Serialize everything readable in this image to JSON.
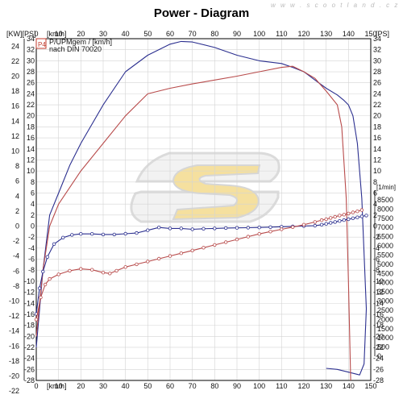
{
  "header": {
    "title": "Power - Diagram",
    "watermark": "w w w . s c o o t l a n d . c z"
  },
  "legend": {
    "badge": "P4",
    "line1": "P/UPMgem / [km/h]",
    "line2": "nach DIN 70020"
  },
  "colors": {
    "background": "#ffffff",
    "grid": "#d4d4d4",
    "axis": "#000000",
    "blue_series": "#2b2f8f",
    "red_series": "#b84b4b",
    "badge": "#c0392b",
    "logo_fill": "#f2d680",
    "logo_outline": "#cfcfcf"
  },
  "chart_data": {
    "type": "line",
    "title": "Power - Diagram",
    "x_axis": {
      "label": "[km/h]",
      "range": [
        0,
        150
      ],
      "ticks": [
        0,
        10,
        20,
        30,
        40,
        50,
        60,
        70,
        80,
        90,
        100,
        110,
        120,
        130,
        140,
        150
      ]
    },
    "y_axis_left": {
      "label": "[KW]",
      "range": [
        -28,
        34
      ],
      "ticks": [
        24,
        22,
        20,
        18,
        16,
        14,
        12,
        10,
        8,
        6,
        4,
        2,
        0,
        -2,
        -4,
        -6,
        -8,
        -10,
        -12,
        -14,
        -16,
        -18,
        -20,
        -22,
        -24
      ],
      "label2": "[PS]",
      "ticks2": [
        34,
        32,
        30,
        28,
        26,
        24,
        22,
        20,
        18,
        16,
        14,
        12,
        10,
        8,
        6,
        4,
        2,
        0,
        -2,
        -4,
        -6,
        -8,
        -10,
        -12,
        -14,
        -16,
        -18,
        -20,
        -22,
        -24,
        -26,
        -28
      ]
    },
    "y_axis_right": {
      "label": "[PS]",
      "ticks": [
        34,
        32,
        30,
        28,
        26,
        24,
        22,
        20,
        18,
        16,
        14,
        12,
        10,
        8,
        6,
        4,
        2,
        0,
        -2,
        -4,
        -6,
        -8,
        -10,
        -12,
        -14,
        -16,
        -18,
        -20,
        -22,
        -24,
        -26,
        -28
      ],
      "rpm_label": "[1/min]",
      "rpm_ticks": [
        8500,
        8000,
        7500,
        7000,
        6500,
        6000,
        5500,
        5000,
        4500,
        4000,
        3500,
        3000,
        2500,
        2000,
        1500,
        1000,
        500,
        0
      ],
      "rpm_range": [
        0,
        8500
      ]
    },
    "grid": true,
    "series": [
      {
        "color": "#2b2f8f",
        "axis": "ps",
        "marker": false,
        "x": [
          0,
          3,
          6,
          10,
          15,
          20,
          30,
          40,
          50,
          60,
          65,
          70,
          80,
          90,
          100,
          110,
          115,
          120,
          125,
          130,
          135,
          138,
          140,
          142,
          144,
          146,
          148,
          147,
          145,
          140,
          135,
          130
        ],
        "y": [
          -22,
          -8,
          2,
          6,
          11,
          15,
          22,
          28,
          31,
          33,
          33.5,
          33.4,
          32.4,
          31,
          30,
          29.5,
          28.8,
          28,
          26.5,
          25,
          23.8,
          22.8,
          22,
          20,
          15,
          5,
          -15,
          -25,
          -27,
          -26.5,
          -26,
          -25.8
        ]
      },
      {
        "color": "#b84b4b",
        "axis": "ps",
        "marker": false,
        "x": [
          0,
          3,
          6,
          10,
          20,
          30,
          40,
          50,
          60,
          70,
          80,
          90,
          100,
          110,
          115,
          120,
          125,
          130,
          135,
          137,
          139,
          140,
          141
        ],
        "y": [
          -20,
          -8,
          0,
          4,
          10,
          15,
          20,
          24,
          25,
          25.8,
          26.5,
          27.2,
          28,
          28.8,
          29,
          28,
          26.8,
          24.5,
          22,
          18,
          5,
          -10,
          -28
        ]
      },
      {
        "color": "#2b2f8f",
        "axis": "rpm",
        "marker": true,
        "x": [
          0,
          1.5,
          3,
          5,
          8,
          12,
          16,
          20,
          25,
          30,
          35,
          40,
          45,
          50,
          55,
          60,
          65,
          70,
          75,
          80,
          85,
          90,
          95,
          100,
          105,
          110,
          115,
          120,
          125,
          128,
          130,
          132,
          134,
          136,
          138,
          140,
          142,
          144,
          146,
          148
        ],
        "y": [
          2300,
          3700,
          4600,
          5400,
          6100,
          6450,
          6600,
          6650,
          6650,
          6620,
          6620,
          6660,
          6700,
          6850,
          7000,
          6950,
          6950,
          6900,
          6930,
          6950,
          6970,
          6980,
          6990,
          7000,
          7020,
          7040,
          7060,
          7080,
          7100,
          7150,
          7200,
          7250,
          7300,
          7350,
          7400,
          7450,
          7500,
          7550,
          7600,
          7650
        ]
      },
      {
        "color": "#b84b4b",
        "axis": "rpm",
        "marker": true,
        "x": [
          0,
          2,
          4,
          6,
          10,
          15,
          20,
          25,
          30,
          33,
          36,
          40,
          45,
          50,
          55,
          60,
          65,
          70,
          75,
          80,
          85,
          90,
          95,
          100,
          105,
          110,
          115,
          120,
          125,
          128,
          130,
          132,
          134,
          136,
          138,
          140,
          142,
          144,
          146
        ],
        "y": [
          2000,
          3200,
          3900,
          4200,
          4450,
          4650,
          4750,
          4700,
          4550,
          4500,
          4650,
          4850,
          5000,
          5150,
          5300,
          5450,
          5600,
          5750,
          5900,
          6050,
          6200,
          6350,
          6500,
          6650,
          6780,
          6900,
          7020,
          7150,
          7300,
          7400,
          7450,
          7520,
          7580,
          7650,
          7700,
          7760,
          7820,
          7880,
          7950
        ]
      }
    ],
    "logo": "S"
  }
}
